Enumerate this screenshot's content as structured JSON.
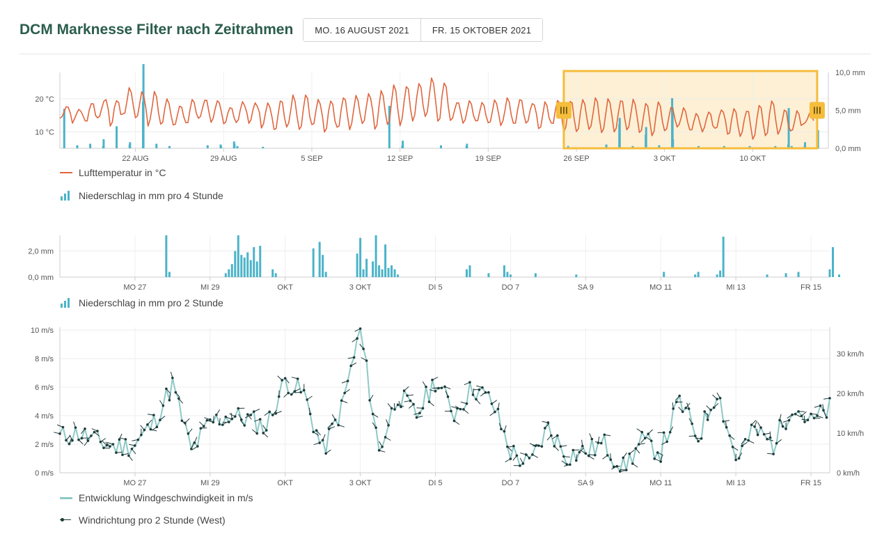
{
  "header": {
    "title": "DCM Marknesse Filter nach Zeitrahmen",
    "date_from": "MO. 16 AUGUST 2021",
    "date_to": "FR. 15 OKTOBER 2021"
  },
  "colors": {
    "title": "#2b5d4c",
    "temperature": "#e0663e",
    "precipitation": "#4bb3c9",
    "wind_speed": "#8ec9c6",
    "wind_direction": "#1f3a3a",
    "selection_fill": "#fdf0d5",
    "selection_border": "#f4bd3b"
  },
  "chart_data": [
    {
      "type": "line",
      "id": "overview",
      "x_range": [
        "2021-08-16",
        "2021-10-15"
      ],
      "xticks": [
        "22 AUG",
        "29 AUG",
        "5 SEP",
        "12 SEP",
        "19 SEP",
        "26 SEP",
        "3 OKT",
        "10 OKT"
      ],
      "yticks_left": [
        "20 °C",
        "10 °C"
      ],
      "ylim_left": [
        5,
        28
      ],
      "yticks_right": [
        "10,0 mm",
        "5,0 mm",
        "0,0 mm"
      ],
      "ylim_right": [
        0,
        10
      ],
      "selection": {
        "from": "2021-09-25",
        "to": "2021-10-15"
      },
      "series": [
        {
          "name": "Lufttemperatur in °C",
          "kind": "line",
          "axis": "left",
          "daily_mean": [
            16,
            15,
            16,
            17,
            16,
            19,
            18,
            17,
            16,
            15,
            16,
            17,
            16,
            15,
            16,
            16,
            15,
            15,
            16,
            16,
            16,
            15,
            16,
            16,
            17,
            17,
            18,
            18,
            19,
            20,
            19,
            16,
            16,
            16,
            16,
            16,
            16,
            16,
            15,
            16,
            15,
            15,
            15,
            15,
            15,
            15,
            14,
            14,
            14,
            14,
            13,
            13,
            14,
            13,
            13,
            13,
            14,
            13,
            13,
            14
          ],
          "daily_amplitude": [
            2,
            2,
            3,
            3,
            4,
            4,
            4,
            5,
            4,
            3,
            4,
            3,
            3,
            3,
            3,
            3,
            4,
            5,
            5,
            5,
            4,
            5,
            5,
            5,
            5,
            6,
            6,
            6,
            6,
            6,
            6,
            3,
            3,
            3,
            4,
            4,
            4,
            3,
            4,
            4,
            5,
            5,
            5,
            5,
            5,
            5,
            5,
            5,
            4,
            3,
            3,
            3,
            3,
            4,
            4,
            5,
            5,
            4,
            3,
            2
          ]
        },
        {
          "name": "Niederschlag in mm pro 4 Stunde",
          "kind": "bar",
          "axis": "right",
          "events": [
            {
              "date": "2021-08-16",
              "mm": 5.2
            },
            {
              "date": "2021-08-17",
              "mm": 0.4
            },
            {
              "date": "2021-08-18",
              "mm": 0.6
            },
            {
              "date": "2021-08-19",
              "mm": 0.3
            },
            {
              "date": "2021-08-19",
              "mm": 1.2
            },
            {
              "date": "2021-08-20",
              "mm": 2.9
            },
            {
              "date": "2021-08-21",
              "mm": 0.5
            },
            {
              "date": "2021-08-21",
              "mm": 0.8
            },
            {
              "date": "2021-08-22",
              "mm": 6.1
            },
            {
              "date": "2021-08-22",
              "mm": 11.1
            },
            {
              "date": "2021-08-23",
              "mm": 0.6
            },
            {
              "date": "2021-08-24",
              "mm": 0.3
            },
            {
              "date": "2021-08-27",
              "mm": 0.4
            },
            {
              "date": "2021-08-28",
              "mm": 0.5
            },
            {
              "date": "2021-08-28",
              "mm": 0.3
            },
            {
              "date": "2021-08-29",
              "mm": 0.9
            },
            {
              "date": "2021-08-29",
              "mm": 0.6
            },
            {
              "date": "2021-08-30",
              "mm": 0.3
            },
            {
              "date": "2021-09-01",
              "mm": 0.2
            },
            {
              "date": "2021-09-11",
              "mm": 5.6
            },
            {
              "date": "2021-09-12",
              "mm": 0.4
            },
            {
              "date": "2021-09-12",
              "mm": 1.0
            },
            {
              "date": "2021-09-15",
              "mm": 0.4
            },
            {
              "date": "2021-09-17",
              "mm": 0.3
            },
            {
              "date": "2021-09-17",
              "mm": 0.6
            },
            {
              "date": "2021-09-25",
              "mm": 0.3
            },
            {
              "date": "2021-09-28",
              "mm": 0.5
            },
            {
              "date": "2021-09-29",
              "mm": 3.2
            },
            {
              "date": "2021-09-29",
              "mm": 4.0
            },
            {
              "date": "2021-09-30",
              "mm": 0.3
            },
            {
              "date": "2021-10-01",
              "mm": 1.8
            },
            {
              "date": "2021-10-01",
              "mm": 2.8
            },
            {
              "date": "2021-10-02",
              "mm": 0.4
            },
            {
              "date": "2021-10-03",
              "mm": 6.6
            },
            {
              "date": "2021-10-03",
              "mm": 5.4
            },
            {
              "date": "2021-10-03",
              "mm": 1.2
            },
            {
              "date": "2021-10-05",
              "mm": 0.3
            },
            {
              "date": "2021-10-07",
              "mm": 0.3
            },
            {
              "date": "2021-10-09",
              "mm": 0.3
            },
            {
              "date": "2021-10-11",
              "mm": 0.3
            },
            {
              "date": "2021-10-12",
              "mm": 0.5
            },
            {
              "date": "2021-10-12",
              "mm": 5.3
            },
            {
              "date": "2021-10-13",
              "mm": 0.3
            },
            {
              "date": "2021-10-14",
              "mm": 0.3
            },
            {
              "date": "2021-10-14",
              "mm": 0.8
            },
            {
              "date": "2021-10-15",
              "mm": 2.4
            }
          ]
        }
      ]
    },
    {
      "type": "bar",
      "id": "precipitation",
      "x_range": [
        "2021-09-25",
        "2021-10-15 12:00"
      ],
      "xticks": [
        "MO 27",
        "MI 29",
        "OKT",
        "3 OKT",
        "DI 5",
        "DO 7",
        "SA 9",
        "MO 11",
        "MI 13",
        "FR 15"
      ],
      "yticks": [
        "2,0 mm",
        "0,0 mm"
      ],
      "ylim": [
        0,
        3.2
      ],
      "series": [
        {
          "name": "Niederschlag in mm pro 2 Stunde",
          "points": [
            {
              "t": "2021-09-27 20:00",
              "mm": 3.2
            },
            {
              "t": "2021-09-27 22:00",
              "mm": 0.4
            },
            {
              "t": "2021-09-29 10:00",
              "mm": 0.3
            },
            {
              "t": "2021-09-29 12:00",
              "mm": 0.6
            },
            {
              "t": "2021-09-29 14:00",
              "mm": 1.0
            },
            {
              "t": "2021-09-29 16:00",
              "mm": 2.0
            },
            {
              "t": "2021-09-29 18:00",
              "mm": 3.2
            },
            {
              "t": "2021-09-29 20:00",
              "mm": 1.7
            },
            {
              "t": "2021-09-29 22:00",
              "mm": 1.5
            },
            {
              "t": "2021-09-30 00:00",
              "mm": 1.9
            },
            {
              "t": "2021-09-30 02:00",
              "mm": 1.3
            },
            {
              "t": "2021-09-30 04:00",
              "mm": 2.3
            },
            {
              "t": "2021-09-30 06:00",
              "mm": 1.2
            },
            {
              "t": "2021-09-30 08:00",
              "mm": 2.4
            },
            {
              "t": "2021-09-30 16:00",
              "mm": 0.6
            },
            {
              "t": "2021-09-30 18:00",
              "mm": 0.3
            },
            {
              "t": "2021-10-01 18:00",
              "mm": 2.2
            },
            {
              "t": "2021-10-01 22:00",
              "mm": 2.7
            },
            {
              "t": "2021-10-02 00:00",
              "mm": 1.7
            },
            {
              "t": "2021-10-02 02:00",
              "mm": 0.4
            },
            {
              "t": "2021-10-02 22:00",
              "mm": 1.8
            },
            {
              "t": "2021-10-03 00:00",
              "mm": 3.0
            },
            {
              "t": "2021-10-03 02:00",
              "mm": 0.6
            },
            {
              "t": "2021-10-03 04:00",
              "mm": 1.4
            },
            {
              "t": "2021-10-03 08:00",
              "mm": 1.2
            },
            {
              "t": "2021-10-03 10:00",
              "mm": 3.2
            },
            {
              "t": "2021-10-03 12:00",
              "mm": 0.9
            },
            {
              "t": "2021-10-03 14:00",
              "mm": 0.6
            },
            {
              "t": "2021-10-03 16:00",
              "mm": 2.5
            },
            {
              "t": "2021-10-03 18:00",
              "mm": 0.7
            },
            {
              "t": "2021-10-03 20:00",
              "mm": 0.9
            },
            {
              "t": "2021-10-03 22:00",
              "mm": 0.6
            },
            {
              "t": "2021-10-04 00:00",
              "mm": 0.2
            },
            {
              "t": "2021-10-05 20:00",
              "mm": 0.6
            },
            {
              "t": "2021-10-05 22:00",
              "mm": 0.9
            },
            {
              "t": "2021-10-06 10:00",
              "mm": 0.3
            },
            {
              "t": "2021-10-06 20:00",
              "mm": 0.9
            },
            {
              "t": "2021-10-06 22:00",
              "mm": 0.4
            },
            {
              "t": "2021-10-07 00:00",
              "mm": 0.2
            },
            {
              "t": "2021-10-07 16:00",
              "mm": 0.3
            },
            {
              "t": "2021-10-08 18:00",
              "mm": 0.2
            },
            {
              "t": "2021-10-11 02:00",
              "mm": 0.4
            },
            {
              "t": "2021-10-11 22:00",
              "mm": 0.2
            },
            {
              "t": "2021-10-12 00:00",
              "mm": 0.4
            },
            {
              "t": "2021-10-12 12:00",
              "mm": 0.2
            },
            {
              "t": "2021-10-12 14:00",
              "mm": 0.5
            },
            {
              "t": "2021-10-12 16:00",
              "mm": 3.1
            },
            {
              "t": "2021-10-13 20:00",
              "mm": 0.2
            },
            {
              "t": "2021-10-14 08:00",
              "mm": 0.3
            },
            {
              "t": "2021-10-14 16:00",
              "mm": 0.4
            },
            {
              "t": "2021-10-15 12:00",
              "mm": 0.6
            },
            {
              "t": "2021-10-15 14:00",
              "mm": 2.3
            },
            {
              "t": "2021-10-15 18:00",
              "mm": 0.2
            }
          ]
        }
      ]
    },
    {
      "type": "line",
      "id": "wind",
      "x_range": [
        "2021-09-25",
        "2021-10-15 12:00"
      ],
      "xticks": [
        "MO 27",
        "MI 29",
        "OKT",
        "3 OKT",
        "DI 5",
        "DO 7",
        "SA 9",
        "MO 11",
        "MI 13",
        "FR 15"
      ],
      "yticks_left": [
        "10 m/s",
        "8 m/s",
        "6 m/s",
        "4 m/s",
        "2 m/s",
        "0 m/s"
      ],
      "ylim_left": [
        0,
        10.2
      ],
      "yticks_right": [
        "30 km/h",
        "20 km/h",
        "10 km/h",
        "0 km/h"
      ],
      "ylim_right": [
        0,
        36.7
      ],
      "series": [
        {
          "name": "Entwicklung Windgeschwindigkeit in m/s",
          "points": [
            {
              "t": "2021-09-25 00:00",
              "v": 2.5
            },
            {
              "t": "2021-09-25 12:00",
              "v": 2.8
            },
            {
              "t": "2021-09-26 00:00",
              "v": 2.2
            },
            {
              "t": "2021-09-26 12:00",
              "v": 1.8
            },
            {
              "t": "2021-09-27 00:00",
              "v": 2.0
            },
            {
              "t": "2021-09-27 12:00",
              "v": 3.5
            },
            {
              "t": "2021-09-28 00:00",
              "v": 6.2
            },
            {
              "t": "2021-09-28 12:00",
              "v": 1.5
            },
            {
              "t": "2021-09-29 00:00",
              "v": 3.5
            },
            {
              "t": "2021-09-29 12:00",
              "v": 4.0
            },
            {
              "t": "2021-09-30 00:00",
              "v": 3.8
            },
            {
              "t": "2021-09-30 12:00",
              "v": 3.2
            },
            {
              "t": "2021-10-01 00:00",
              "v": 6.5
            },
            {
              "t": "2021-10-01 12:00",
              "v": 5.5
            },
            {
              "t": "2021-10-02 00:00",
              "v": 1.5
            },
            {
              "t": "2021-10-02 12:00",
              "v": 4.5
            },
            {
              "t": "2021-10-03 00:00",
              "v": 10.0
            },
            {
              "t": "2021-10-03 12:00",
              "v": 1.5
            },
            {
              "t": "2021-10-04 00:00",
              "v": 5.5
            },
            {
              "t": "2021-10-04 12:00",
              "v": 4.0
            },
            {
              "t": "2021-10-05 00:00",
              "v": 6.5
            },
            {
              "t": "2021-10-05 12:00",
              "v": 4.2
            },
            {
              "t": "2021-10-06 00:00",
              "v": 6.0
            },
            {
              "t": "2021-10-06 12:00",
              "v": 5.0
            },
            {
              "t": "2021-10-07 00:00",
              "v": 1.5
            },
            {
              "t": "2021-10-07 12:00",
              "v": 0.5
            },
            {
              "t": "2021-10-08 00:00",
              "v": 3.2
            },
            {
              "t": "2021-10-08 12:00",
              "v": 1.2
            },
            {
              "t": "2021-10-09 00:00",
              "v": 1.5
            },
            {
              "t": "2021-10-09 12:00",
              "v": 2.0
            },
            {
              "t": "2021-10-10 00:00",
              "v": 0.3
            },
            {
              "t": "2021-10-10 12:00",
              "v": 2.2
            },
            {
              "t": "2021-10-11 00:00",
              "v": 1.5
            },
            {
              "t": "2021-10-11 12:00",
              "v": 5.0
            },
            {
              "t": "2021-10-12 00:00",
              "v": 2.5
            },
            {
              "t": "2021-10-12 12:00",
              "v": 5.8
            },
            {
              "t": "2021-10-13 00:00",
              "v": 1.0
            },
            {
              "t": "2021-10-13 12:00",
              "v": 3.0
            },
            {
              "t": "2021-10-14 00:00",
              "v": 2.0
            },
            {
              "t": "2021-10-14 12:00",
              "v": 4.8
            },
            {
              "t": "2021-10-15 00:00",
              "v": 3.5
            },
            {
              "t": "2021-10-15 12:00",
              "v": 4.5
            }
          ]
        },
        {
          "name": "Windrichtung pro 2 Stunde (West)",
          "kind": "direction-markers",
          "interval_hours": 2,
          "direction": "W"
        }
      ]
    }
  ],
  "legends": {
    "temperature": "Lufttemperatur in °C",
    "precip4": "Niederschlag in mm pro 4 Stunde",
    "precip2": "Niederschlag in mm pro 2 Stunde",
    "wind_speed": "Entwicklung Windgeschwindigkeit in m/s",
    "wind_direction": "Windrichtung pro 2 Stunde (West)"
  }
}
